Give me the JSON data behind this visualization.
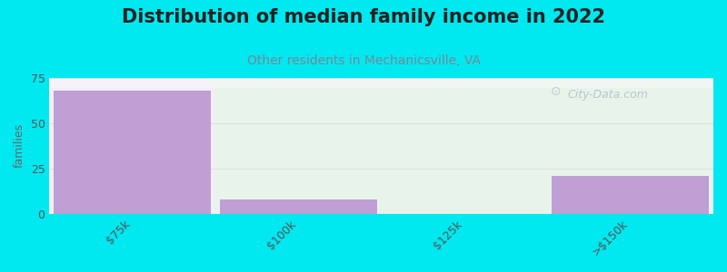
{
  "title": "Distribution of median family income in 2022",
  "subtitle": "Other residents in Mechanicsville, VA",
  "ylabel": "families",
  "categories": [
    "$75k",
    "$100k",
    "$125k",
    ">$150k"
  ],
  "values": [
    68,
    8,
    0,
    21
  ],
  "bar_color": "#bf9fd4",
  "bg_color": "#00e8f0",
  "plot_bg_left": "#f0eef5",
  "plot_bg_right_top": "#eaf5f0",
  "plot_bg_right_bottom": "#d8efd8",
  "ylim": [
    0,
    75
  ],
  "yticks": [
    0,
    25,
    50,
    75
  ],
  "title_fontsize": 15,
  "subtitle_fontsize": 10,
  "subtitle_color": "#778899",
  "watermark": "City-Data.com"
}
